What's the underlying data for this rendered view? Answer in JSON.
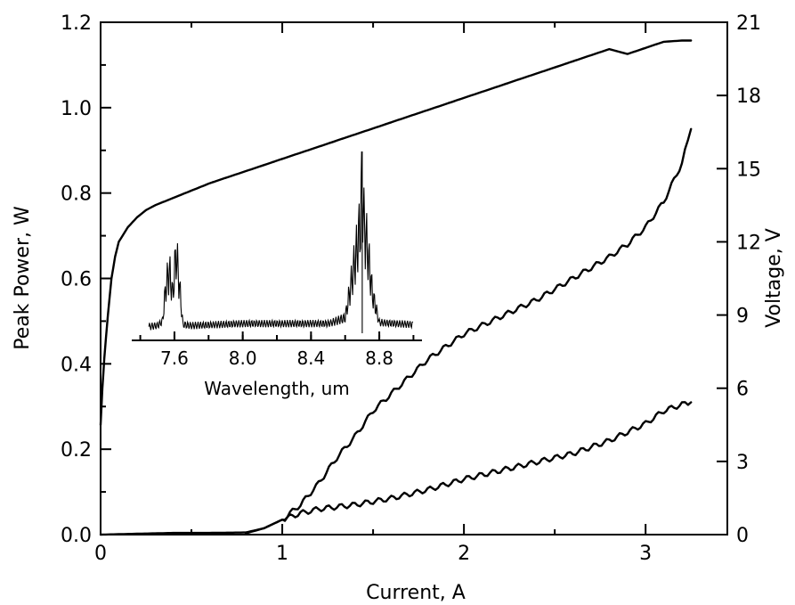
{
  "chart_data": [
    {
      "type": "line",
      "xlabel": "Current, A",
      "ylabel": "Peak Power, W",
      "y2label": "Voltage, V",
      "xlim": [
        0,
        3.45
      ],
      "ylim": [
        0,
        1.2
      ],
      "y2lim": [
        0,
        21
      ],
      "x_ticks": [
        "0",
        "1",
        "2",
        "3"
      ],
      "y_ticks": [
        "0.0",
        "0.2",
        "0.4",
        "0.6",
        "0.8",
        "1.0",
        "1.2"
      ],
      "y2_ticks": [
        "0",
        "3",
        "6",
        "9",
        "12",
        "15",
        "18",
        "21"
      ],
      "series": [
        {
          "axis": "y2",
          "x": [
            0,
            0.01,
            0.02,
            0.04,
            0.06,
            0.08,
            0.1,
            0.15,
            0.2,
            0.25,
            0.3,
            0.4,
            0.5,
            0.6,
            0.8,
            1.0,
            1.2,
            1.4,
            1.6,
            1.8,
            2.0,
            2.2,
            2.4,
            2.6,
            2.8,
            2.85,
            2.9,
            3.0,
            3.1,
            3.2,
            3.25
          ],
          "y": [
            4.5,
            6.0,
            7.2,
            9.0,
            10.5,
            11.4,
            12.0,
            12.6,
            13.0,
            13.3,
            13.5,
            13.8,
            14.1,
            14.4,
            14.9,
            15.4,
            15.9,
            16.4,
            16.9,
            17.4,
            17.9,
            18.4,
            18.9,
            19.4,
            19.9,
            19.8,
            19.7,
            19.95,
            20.2,
            20.25,
            20.25
          ]
        },
        {
          "axis": "y",
          "x": [
            0,
            0.2,
            0.4,
            0.6,
            0.8,
            0.9,
            1.0,
            1.1,
            1.2,
            1.3,
            1.4,
            1.5,
            1.6,
            1.7,
            1.8,
            1.9,
            2.0,
            2.2,
            2.4,
            2.6,
            2.8,
            2.9,
            3.0,
            3.1,
            3.2,
            3.25
          ],
          "y": [
            0.0,
            0.002,
            0.004,
            0.004,
            0.005,
            0.015,
            0.035,
            0.07,
            0.12,
            0.18,
            0.23,
            0.29,
            0.33,
            0.37,
            0.41,
            0.44,
            0.47,
            0.51,
            0.55,
            0.6,
            0.65,
            0.68,
            0.72,
            0.78,
            0.87,
            0.95
          ]
        },
        {
          "axis": "y",
          "x": [
            0.8,
            0.9,
            1.0,
            1.1,
            1.2,
            1.4,
            1.6,
            1.8,
            2.0,
            2.2,
            2.4,
            2.6,
            2.8,
            3.0,
            3.1,
            3.2,
            3.25
          ],
          "y": [
            0.003,
            0.015,
            0.035,
            0.05,
            0.06,
            0.07,
            0.085,
            0.105,
            0.13,
            0.15,
            0.17,
            0.19,
            0.22,
            0.26,
            0.29,
            0.305,
            0.31
          ]
        }
      ]
    },
    {
      "type": "line",
      "xlabel": "Wavelength, um",
      "ylabel": "",
      "xlim": [
        7.35,
        9.05
      ],
      "x_ticks": [
        "7.6",
        "8.0",
        "8.4",
        "8.8"
      ],
      "ylim": [
        0,
        1
      ],
      "series": [
        {
          "x": [
            7.45,
            7.5,
            7.53,
            7.55,
            7.57,
            7.59,
            7.61,
            7.63,
            7.65,
            7.7,
            8.0,
            8.5,
            8.6,
            8.64,
            8.67,
            8.69,
            8.7,
            8.71,
            8.73,
            8.76,
            8.8,
            9.0
          ],
          "y": [
            0.03,
            0.04,
            0.08,
            0.3,
            0.4,
            0.25,
            0.52,
            0.3,
            0.05,
            0.04,
            0.06,
            0.06,
            0.1,
            0.35,
            0.55,
            0.72,
            1.0,
            0.7,
            0.55,
            0.25,
            0.07,
            0.05
          ]
        }
      ]
    }
  ]
}
